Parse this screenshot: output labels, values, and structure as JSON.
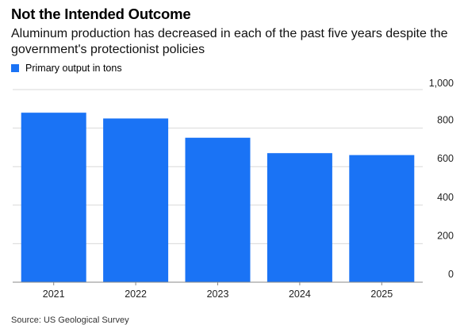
{
  "header": {
    "title": "Not the Intended Outcome",
    "subtitle": "Aluminum production has decreased in each of the past five years despite the government's protectionist policies"
  },
  "footer": {
    "source": "Source: US Geological Survey"
  },
  "colors": {
    "bar": "#1a73f5",
    "gridline": "#d9d9d9",
    "baseline": "#888888"
  },
  "chart_data": {
    "type": "bar",
    "title": "Not the Intended Outcome",
    "subtitle": "Aluminum production has decreased in each of the past five years despite the government's protectionist policies",
    "categories": [
      "2021",
      "2022",
      "2023",
      "2024",
      "2025"
    ],
    "series": [
      {
        "name": "Primary output in tons",
        "values": [
          880,
          850,
          750,
          670,
          660
        ]
      }
    ],
    "ylim": [
      0,
      1000
    ],
    "yticks": [
      0,
      200,
      400,
      600,
      800,
      1000
    ],
    "ytick_labels": [
      "0",
      "200",
      "400",
      "600",
      "800",
      "1,000"
    ],
    "y_axis_side": "right",
    "grid": true,
    "legend_position": "top-left"
  }
}
